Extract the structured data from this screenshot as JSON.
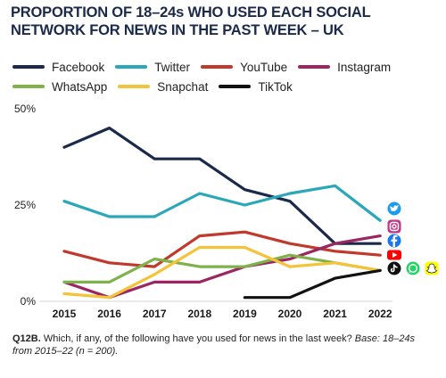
{
  "title": "PROPORTION OF 18–24s WHO USED EACH SOCIAL NETWORK FOR NEWS IN THE PAST WEEK – UK",
  "caption": {
    "label": "Q12B.",
    "question": " Which, if any, of the following have you used for news in the last week? ",
    "base": "Base: 18–24s from 2015–22 (n = 200)."
  },
  "chart_data": {
    "type": "line",
    "x": [
      "2015",
      "2016",
      "2017",
      "2018",
      "2019",
      "2020",
      "2021",
      "2022"
    ],
    "y_ticks": [
      "50%",
      "25%",
      "0%"
    ],
    "ylim": [
      0,
      50
    ],
    "grid": false,
    "legend_position": "top",
    "series": [
      {
        "name": "Facebook",
        "color": "#1b2a4a",
        "icon": "facebook-icon",
        "values": [
          40,
          45,
          37,
          37,
          29,
          26,
          15,
          15
        ]
      },
      {
        "name": "Twitter",
        "color": "#2aa7b8",
        "icon": "twitter-icon",
        "values": [
          26,
          22,
          22,
          28,
          25,
          28,
          30,
          21
        ]
      },
      {
        "name": "YouTube",
        "color": "#c0392b",
        "icon": "youtube-icon",
        "values": [
          13,
          10,
          9,
          17,
          18,
          15,
          13,
          12
        ]
      },
      {
        "name": "Instagram",
        "color": "#9b2661",
        "icon": "instagram-icon",
        "values": [
          5,
          1,
          5,
          5,
          9,
          11,
          15,
          17
        ]
      },
      {
        "name": "WhatsApp",
        "color": "#7fb24a",
        "icon": "whatsapp-icon",
        "values": [
          5,
          5,
          11,
          9,
          9,
          12,
          10,
          8
        ]
      },
      {
        "name": "Snapchat",
        "color": "#f4c339",
        "icon": "snapchat-icon",
        "values": [
          2,
          1,
          7,
          14,
          14,
          9,
          10,
          8
        ]
      },
      {
        "name": "TikTok",
        "color": "#111111",
        "icon": "tiktok-icon",
        "values": [
          null,
          null,
          null,
          null,
          1,
          1,
          6,
          8
        ]
      }
    ]
  }
}
